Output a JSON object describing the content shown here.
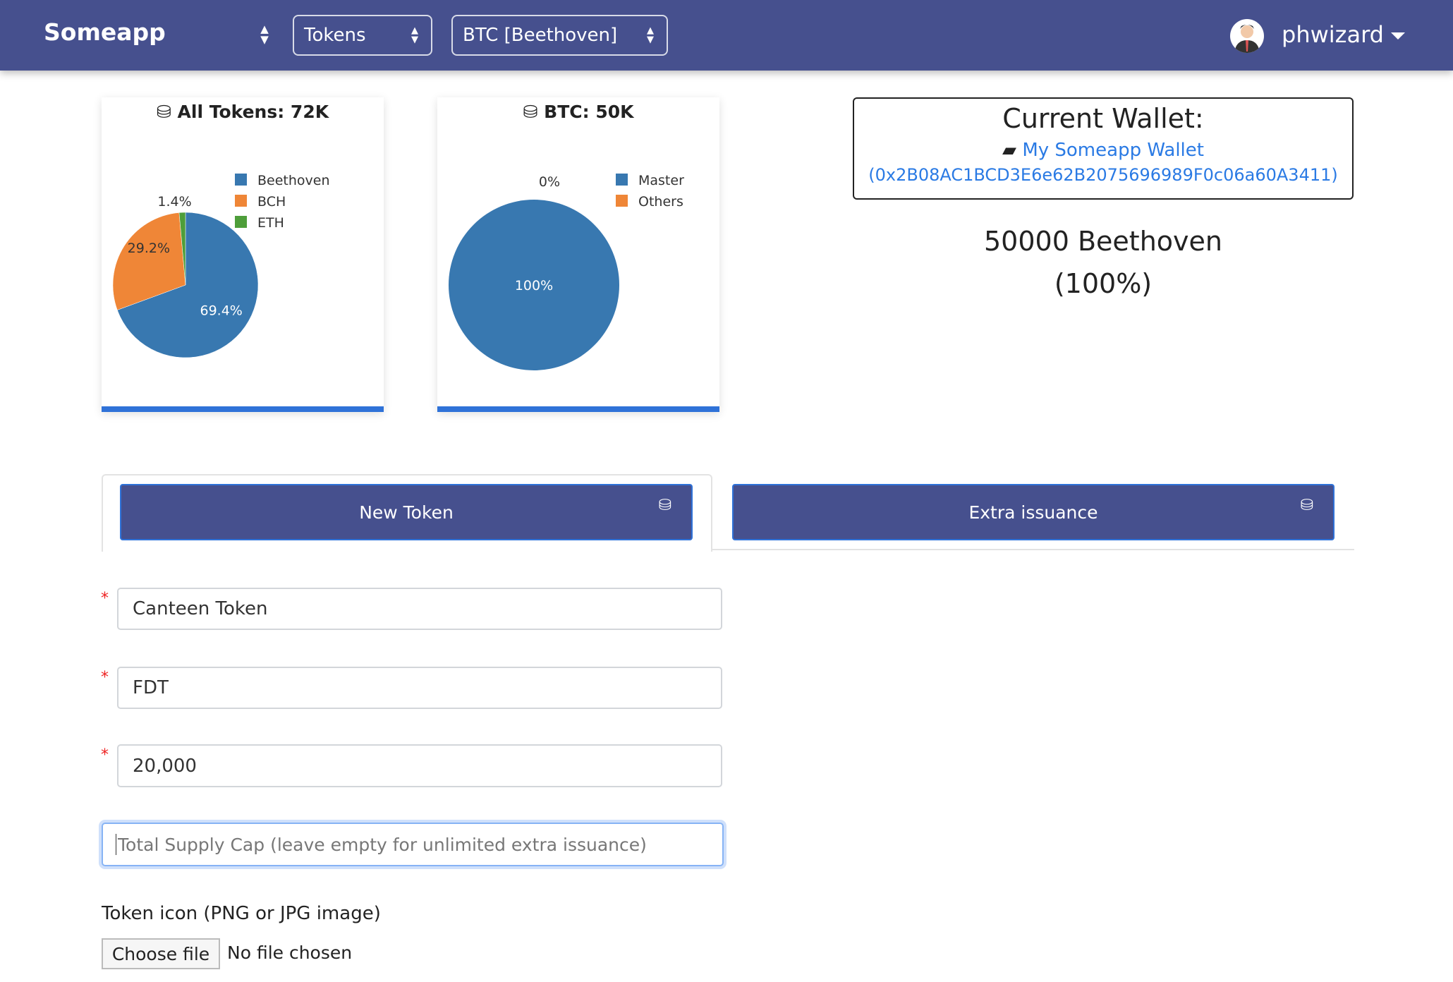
{
  "nav": {
    "brand": "Someapp",
    "select_type": "Tokens",
    "select_token": "BTC [Beethoven]",
    "user": "phwizard"
  },
  "colors": {
    "nav": "#46508e",
    "accent": "#2f72d8",
    "link": "#2a7ae4"
  },
  "chart_data": [
    {
      "type": "pie",
      "title": "All Tokens: 72K",
      "categories": [
        "Beethoven",
        "BCH",
        "ETH"
      ],
      "values": [
        69.4,
        29.2,
        1.4
      ],
      "labels": [
        "69.4%",
        "29.2%",
        "1.4%"
      ],
      "colors": [
        "#3878b0",
        "#ef8637",
        "#4e9e3a"
      ],
      "legend": "top-right"
    },
    {
      "type": "pie",
      "title": "BTC: 50K",
      "categories": [
        "Master",
        "Others"
      ],
      "values": [
        100,
        0
      ],
      "labels": [
        "100%",
        "0%"
      ],
      "colors": [
        "#3878b0",
        "#ef8637"
      ],
      "legend": "top-right"
    }
  ],
  "wallet": {
    "heading": "Current Wallet:",
    "name": "My Someapp Wallet",
    "address": "(0x2B08AC1BCD3E6e62B2075696989F0c06a60A3411)",
    "balance": "50000 Beethoven",
    "percent": "(100%)"
  },
  "tabs": {
    "new_token": "New Token",
    "extra_issuance": "Extra issuance"
  },
  "form": {
    "name_value": "Canteen Token",
    "symbol_value": "FDT",
    "supply_value": "20,000",
    "cap_placeholder": "Total Supply Cap (leave empty for unlimited extra issuance)",
    "required_mark": "*",
    "icon_label": "Token icon (PNG or JPG image)",
    "choose_file": "Choose file",
    "no_file": "No file chosen"
  }
}
